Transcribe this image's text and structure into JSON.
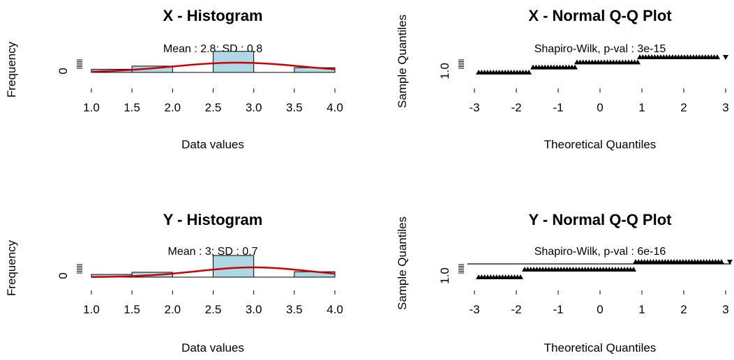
{
  "chart_data": [
    {
      "type": "bar",
      "title": "X - Histogram",
      "subtitle": "Mean : 2.8; SD : 0.8",
      "xlabel": "Data values",
      "ylabel": "Frequency",
      "xlim": [
        1.0,
        4.0
      ],
      "x_ticks": [
        "1.0",
        "1.5",
        "2.0",
        "2.5",
        "3.0",
        "3.5",
        "4.0"
      ],
      "y_ticks": [
        "0"
      ],
      "bins": [
        {
          "from": 1.0,
          "to": 1.5,
          "value": 0.6
        },
        {
          "from": 1.5,
          "to": 2.0,
          "value": 1.2
        },
        {
          "from": 2.0,
          "to": 2.5,
          "value": 0
        },
        {
          "from": 2.5,
          "to": 3.0,
          "value": 4.0
        },
        {
          "from": 3.0,
          "to": 3.5,
          "value": 0
        },
        {
          "from": 3.5,
          "to": 4.0,
          "value": 0.9
        }
      ],
      "density_curve": {
        "mean": 2.8,
        "sd": 0.8,
        "color": "#cc0000"
      },
      "bar_fill": "#add8e6"
    },
    {
      "type": "scatter",
      "title": "X - Normal Q-Q Plot",
      "subtitle": "Shapiro-Wilk, p-val : 3e-15",
      "xlabel": "Theoretical Quantiles",
      "ylabel": "Sample Quantiles",
      "xlim": [
        -3,
        3
      ],
      "x_ticks": [
        "-3",
        "-2",
        "-1",
        "0",
        "1",
        "2",
        "3"
      ],
      "y_ticks": [
        "1.0"
      ],
      "levels": [
        {
          "from": -2.9,
          "to": -1.7,
          "value": 1
        },
        {
          "from": -1.6,
          "to": -0.6,
          "value": 2
        },
        {
          "from": -0.55,
          "to": 0.9,
          "value": 3
        },
        {
          "from": 0.95,
          "to": 2.8,
          "value": 4
        }
      ],
      "reference_line": false
    },
    {
      "type": "bar",
      "title": "Y - Histogram",
      "subtitle": "Mean : 3; SD : 0.7",
      "xlabel": "Data values",
      "ylabel": "Frequency",
      "xlim": [
        1.0,
        4.0
      ],
      "x_ticks": [
        "1.0",
        "1.5",
        "2.0",
        "2.5",
        "3.0",
        "3.5",
        "4.0"
      ],
      "y_ticks": [
        "0"
      ],
      "bins": [
        {
          "from": 1.0,
          "to": 1.5,
          "value": 0.5
        },
        {
          "from": 1.5,
          "to": 2.0,
          "value": 0.9
        },
        {
          "from": 2.0,
          "to": 2.5,
          "value": 0
        },
        {
          "from": 2.5,
          "to": 3.0,
          "value": 4.0
        },
        {
          "from": 3.0,
          "to": 3.5,
          "value": 0
        },
        {
          "from": 3.5,
          "to": 4.0,
          "value": 1.0
        }
      ],
      "density_curve": {
        "mean": 3.0,
        "sd": 0.7,
        "color": "#cc0000"
      },
      "bar_fill": "#add8e6"
    },
    {
      "type": "scatter",
      "title": "Y - Normal Q-Q Plot",
      "subtitle": "Shapiro-Wilk, p-val : 6e-16",
      "xlabel": "Theoretical Quantiles",
      "ylabel": "Sample Quantiles",
      "xlim": [
        -3,
        3
      ],
      "x_ticks": [
        "-3",
        "-2",
        "-1",
        "0",
        "1",
        "2",
        "3"
      ],
      "y_ticks": [
        "1.0"
      ],
      "levels": [
        {
          "from": -2.9,
          "to": -1.9,
          "value": 1
        },
        {
          "from": -1.8,
          "to": 0.8,
          "value": 2
        },
        {
          "from": 0.85,
          "to": 2.9,
          "value": 3
        }
      ],
      "reference_line": true
    }
  ]
}
